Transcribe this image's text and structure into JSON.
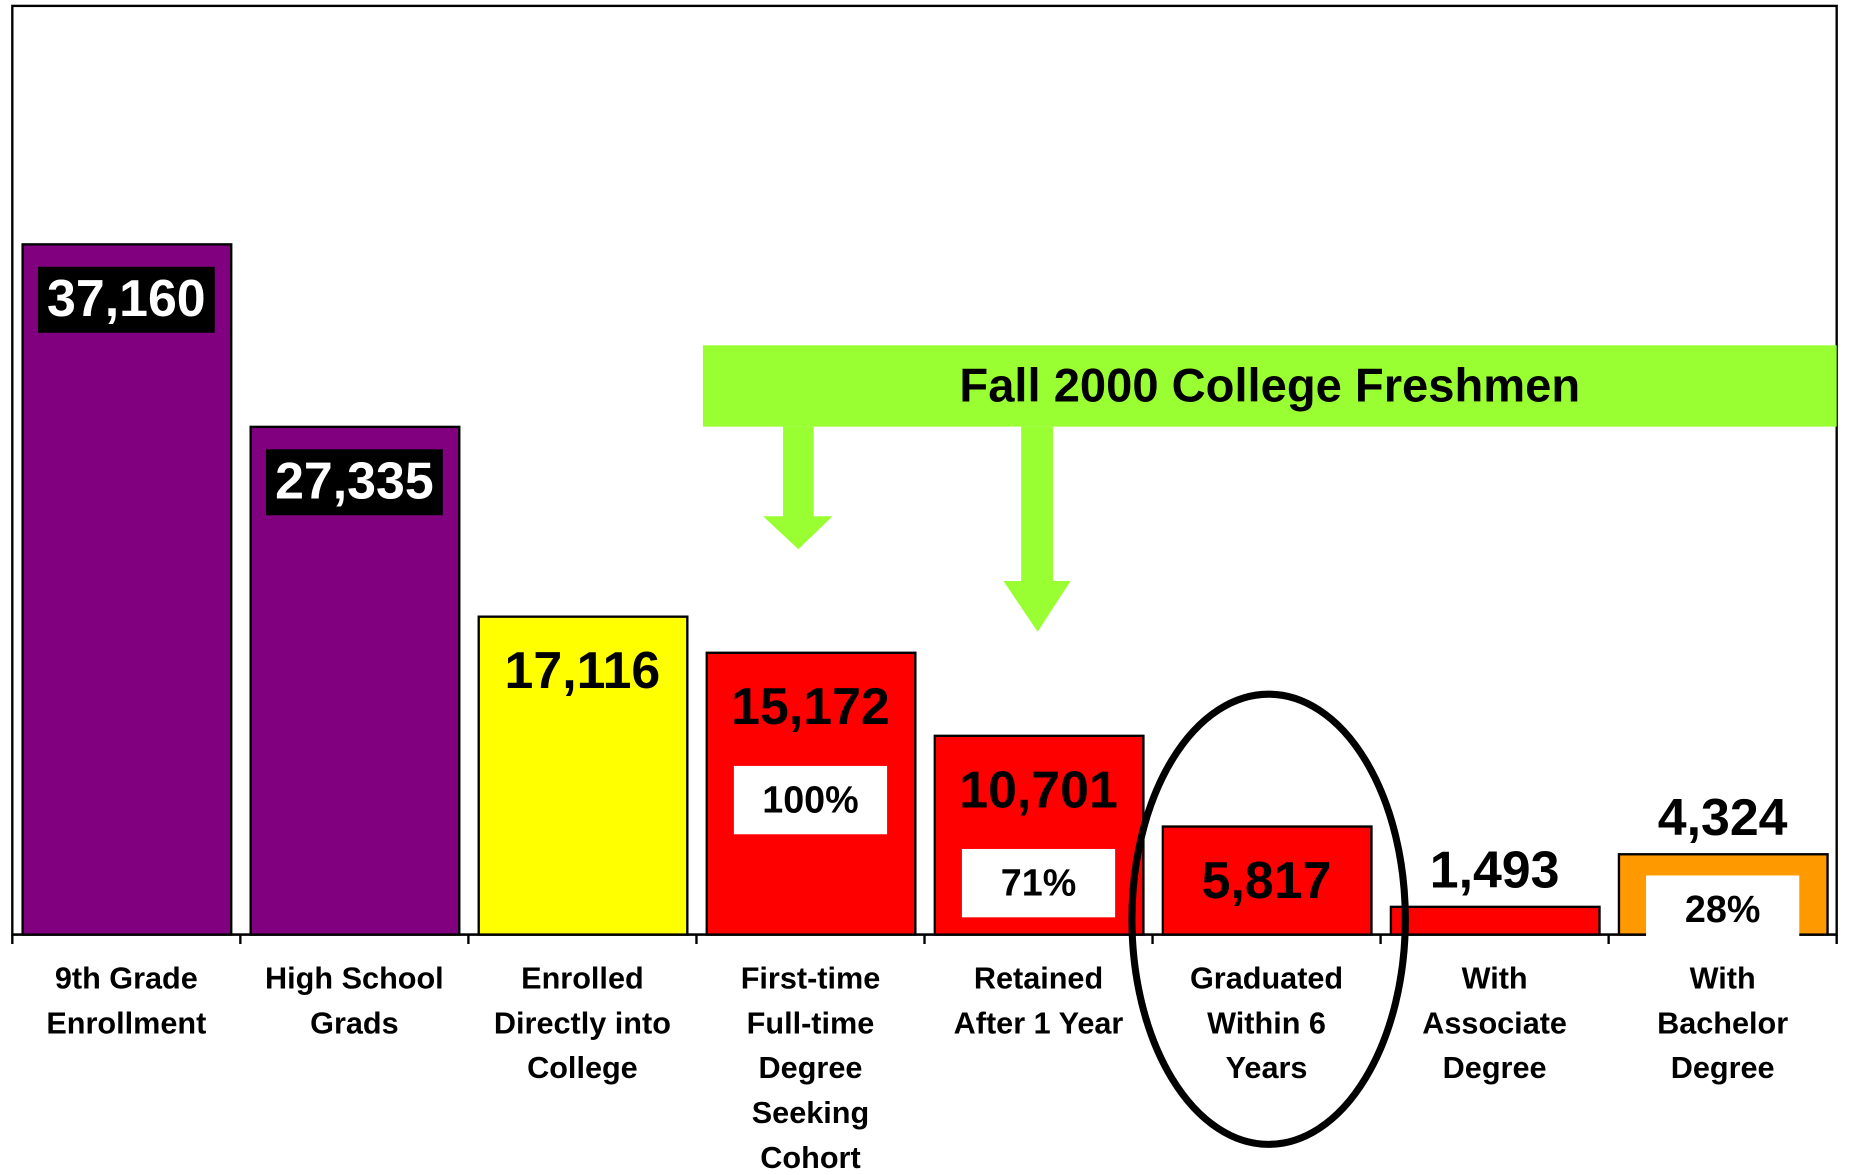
{
  "chart_data": {
    "type": "bar",
    "annotation": "Fall 2000 College Freshmen",
    "categories": [
      [
        "9th Grade",
        "Enrollment"
      ],
      [
        "High School",
        "Grads"
      ],
      [
        "Enrolled",
        "Directly into",
        "College"
      ],
      [
        "First-time",
        "Full-time",
        "Degree",
        "Seeking",
        "Cohort"
      ],
      [
        "Retained",
        "After 1 Year"
      ],
      [
        "Graduated",
        "Within 6",
        "Years"
      ],
      [
        "With",
        "Associate",
        "Degree"
      ],
      [
        "With",
        "Bachelor",
        "Degree"
      ]
    ],
    "values": [
      37160,
      27335,
      17116,
      15172,
      10701,
      5817,
      1493,
      4324
    ],
    "value_labels": [
      "37,160",
      "27,335",
      "17,116",
      "15,172",
      "10,701",
      "5,817",
      "1,493",
      "4,324"
    ],
    "share_labels": [
      null,
      null,
      null,
      "100%",
      "71%",
      null,
      null,
      "28%"
    ],
    "colors": [
      "#800080",
      "#800080",
      "#ffff00",
      "#ff0000",
      "#ff0000",
      "#ff0000",
      "#ff0000",
      "#ff9900"
    ],
    "label_backgrounds": [
      "#000000",
      "#000000",
      null,
      null,
      null,
      null,
      null,
      null
    ],
    "ylim": [
      0,
      50000
    ]
  }
}
